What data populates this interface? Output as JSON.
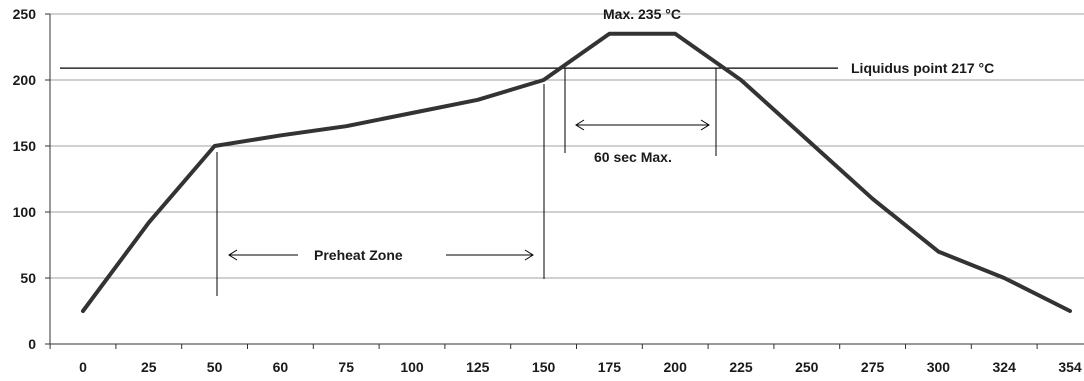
{
  "chart_data": {
    "type": "line",
    "title": "",
    "xlabel": "",
    "ylabel": "",
    "categories": [
      "0",
      "25",
      "50",
      "60",
      "75",
      "100",
      "125",
      "150",
      "175",
      "200",
      "225",
      "250",
      "275",
      "300",
      "324",
      "354"
    ],
    "ylim": [
      0,
      250
    ],
    "yticks": [
      0,
      50,
      100,
      150,
      200,
      250
    ],
    "grid": true,
    "series": [
      {
        "values": [
          25,
          92,
          150,
          158,
          165,
          175,
          185,
          200,
          235,
          235,
          200,
          155,
          110,
          70,
          50,
          25
        ]
      }
    ],
    "annotations": {
      "peak": "Max.  235 °C",
      "liquidus": "Liquidus  point  217 °C",
      "above_liquidus": "60 sec Max.",
      "preheat": "Preheat Zone"
    },
    "colors": {
      "line": "#333333",
      "grid": "#a0a0a0",
      "reference": "#000000"
    }
  }
}
